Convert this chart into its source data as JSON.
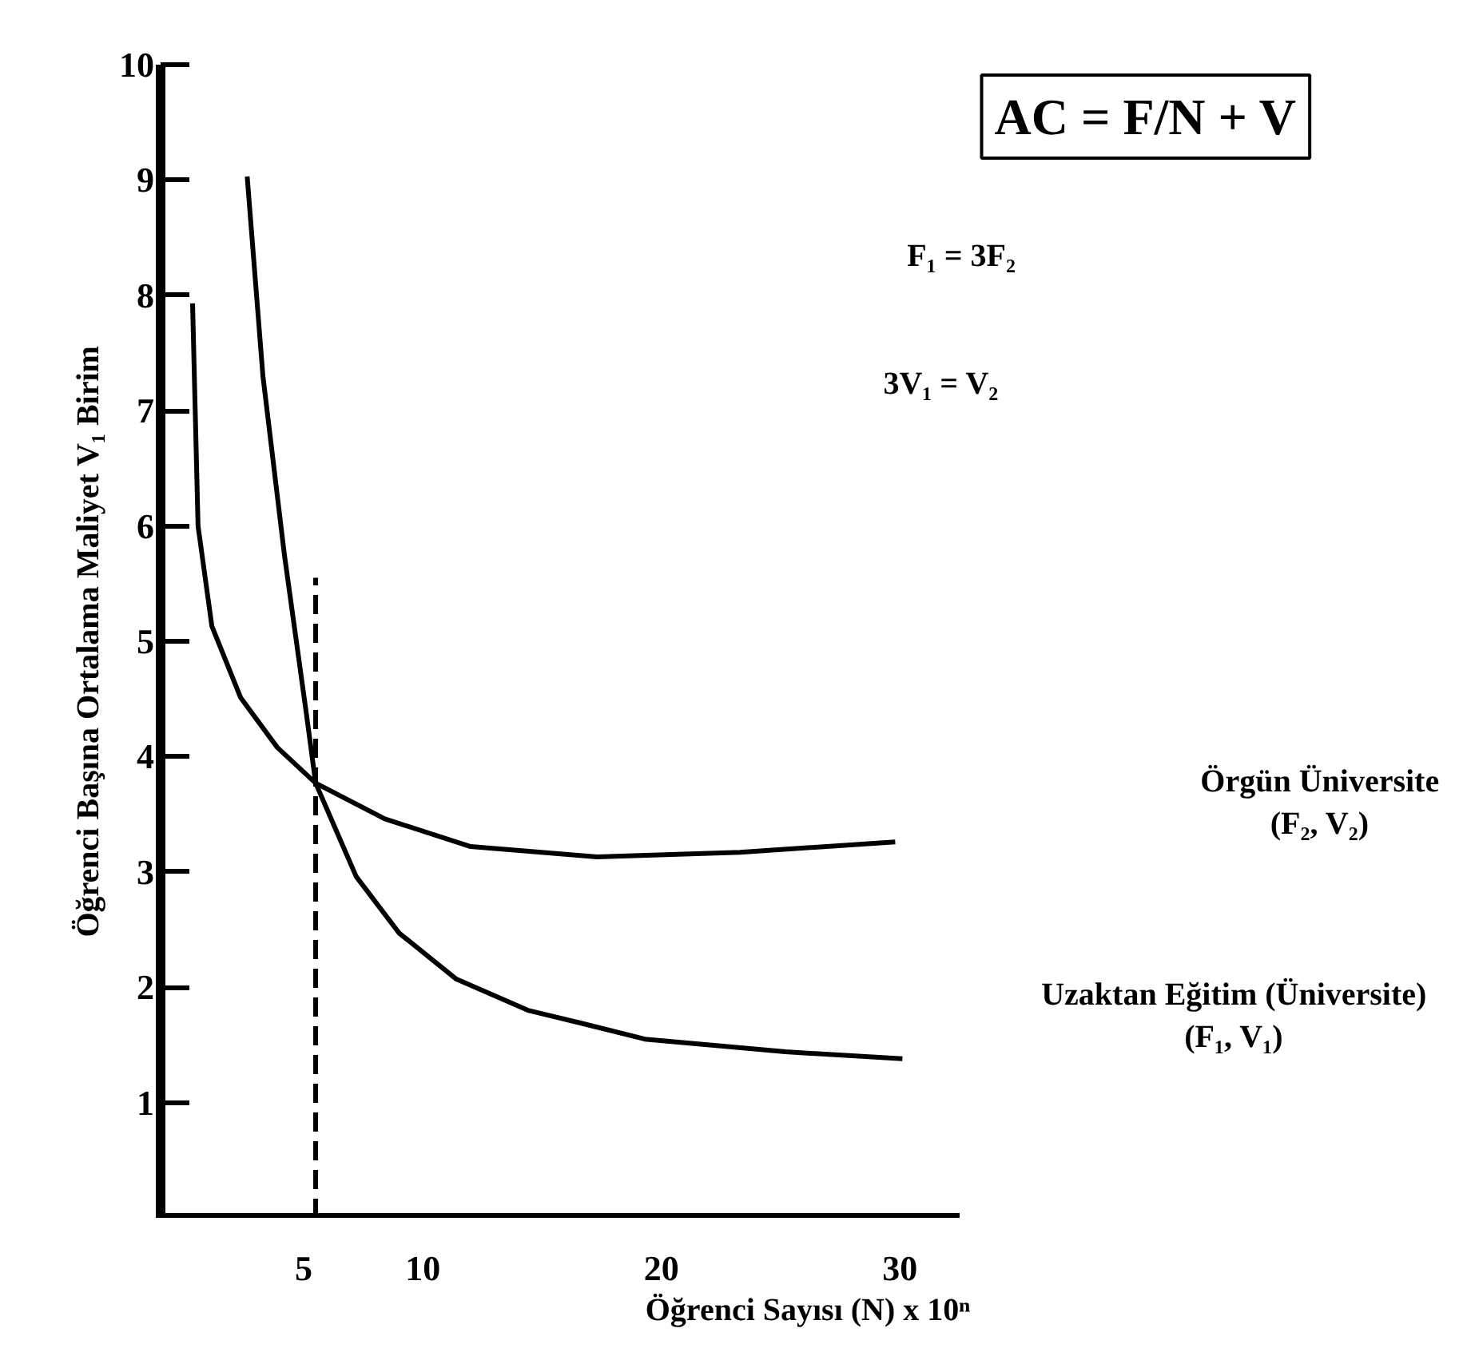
{
  "chart_data": {
    "type": "line",
    "xlabel": "Öğrenci Sayısı (N) x 10ⁿ",
    "ylabel": "Öğrenci Başına Ortalama Maliyet V₁ Birim",
    "xlim": [
      -1,
      32.5
    ],
    "ylim": [
      0,
      10
    ],
    "xticks": [
      5,
      10,
      20,
      30
    ],
    "yticks": [
      1,
      2,
      3,
      4,
      5,
      6,
      7,
      8,
      9,
      10
    ],
    "grid": false,
    "line_style": "solid",
    "annotations": [
      "AC = F/N + V",
      "F₁ = 3F₂",
      "3V₁ = V₂"
    ],
    "series": [
      {
        "name": "Örgün Üniversite\n(F₂, V₂)",
        "color": "#000000",
        "x": [
          0.34,
          0.57,
          1.15,
          2.36,
          3.89,
          5.5,
          8.4,
          12.0,
          17.3,
          23.3,
          29.8
        ],
        "values": [
          7.93,
          6.0,
          5.13,
          4.51,
          4.08,
          3.77,
          3.46,
          3.22,
          3.13,
          3.17,
          3.26
        ]
      },
      {
        "name": "Uzaktan Eğitim (Üniversite)\n(F₁, V₁)",
        "color": "#000000",
        "x": [
          2.63,
          3.29,
          4.19,
          5.1,
          5.5,
          7.2,
          9.0,
          11.4,
          14.4,
          16.6,
          19.3,
          25.2,
          30.1
        ],
        "values": [
          9.03,
          7.3,
          5.75,
          4.39,
          3.77,
          2.96,
          2.47,
          2.07,
          1.8,
          1.69,
          1.55,
          1.44,
          1.38
        ]
      },
      {
        "color": "#000000",
        "line_style": "dashed",
        "x": [
          5.5,
          5.5
        ],
        "values": [
          0,
          5.55
        ]
      }
    ]
  }
}
